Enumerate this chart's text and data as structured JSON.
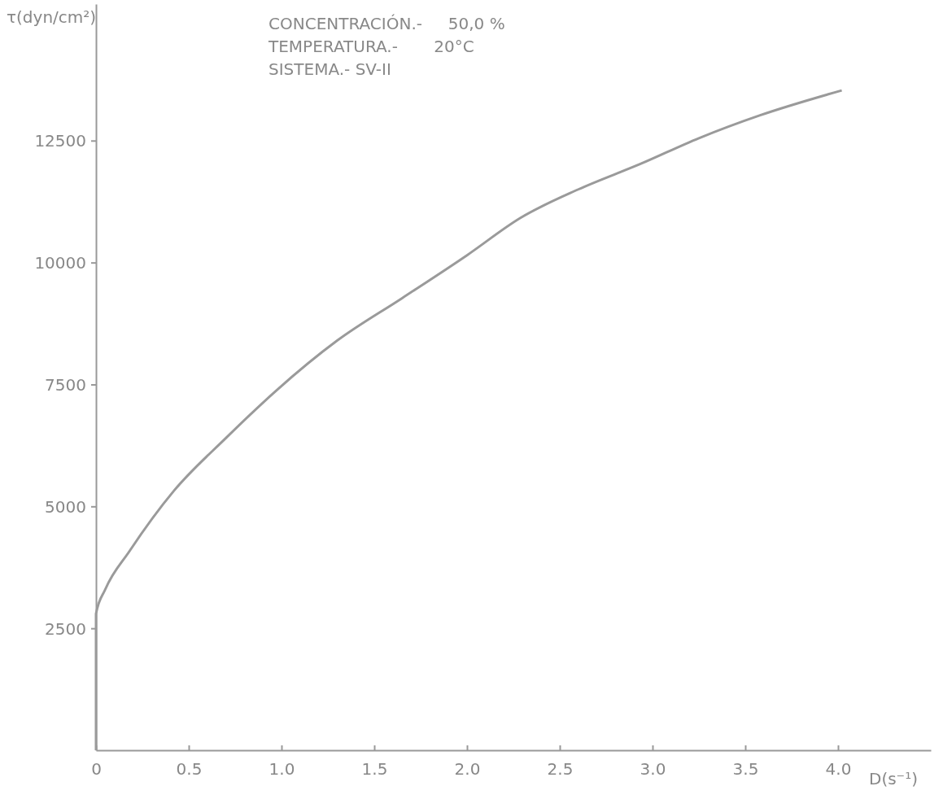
{
  "chart_data": {
    "type": "line",
    "xlabel": "D(s⁻¹)",
    "ylabel": "τ(dyn/cm²)",
    "annotations": [
      "CONCENTRACIÓN.-     50,0 %",
      "TEMPERATURA.-       20°C",
      "SISTEMA.- SV-II"
    ],
    "series": [
      {
        "color": "#9a9a9a",
        "x": [
          0,
          0,
          0.05,
          0.18,
          0.42,
          0.7,
          0.97,
          1.3,
          1.65,
          2.0,
          2.29,
          2.6,
          2.94,
          3.25,
          3.58,
          4.02
        ],
        "values": [
          0,
          2800,
          3300,
          4080,
          5320,
          6400,
          7370,
          8400,
          9270,
          10150,
          10920,
          11500,
          12030,
          12550,
          13020,
          13530
        ]
      }
    ],
    "xlim": [
      0,
      4.5
    ],
    "ylim": [
      0,
      15300
    ],
    "xticks": [
      0,
      0.5,
      {
        "value": 1,
        "label": "1.0"
      },
      1.5,
      {
        "value": 2,
        "label": "2.0"
      },
      2.5,
      {
        "value": 3,
        "label": "3.0"
      },
      3.5,
      {
        "value": 4,
        "label": "4.0"
      }
    ],
    "yticks": [
      2500,
      5000,
      7500,
      10000,
      12500
    ],
    "grid": false,
    "marker": "none",
    "line_style": "solid"
  }
}
